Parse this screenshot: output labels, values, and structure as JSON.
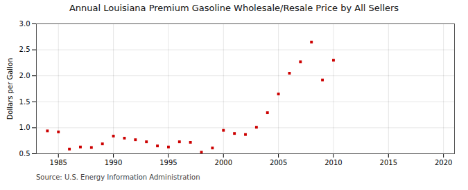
{
  "chart_data": {
    "type": "scatter",
    "title": "Annual Louisiana Premium Gasoline Wholesale/Resale Price by All Sellers",
    "ylabel": "Dollars per Gallon",
    "source": "Source: U.S. Energy Information Administration",
    "x": [
      1984,
      1985,
      1986,
      1987,
      1988,
      1989,
      1990,
      1991,
      1992,
      1993,
      1994,
      1995,
      1996,
      1997,
      1998,
      1999,
      2000,
      2001,
      2002,
      2003,
      2004,
      2005,
      2006,
      2007,
      2008,
      2009,
      2010
    ],
    "values": [
      0.94,
      0.92,
      0.59,
      0.63,
      0.62,
      0.69,
      0.84,
      0.8,
      0.77,
      0.73,
      0.65,
      0.63,
      0.73,
      0.72,
      0.53,
      0.61,
      0.95,
      0.89,
      0.87,
      1.01,
      1.29,
      1.65,
      2.05,
      2.27,
      2.65,
      1.92,
      2.3
    ],
    "color": "#cc0000",
    "marker": "square",
    "xlim": [
      1983,
      2021
    ],
    "ylim": [
      0.5,
      3.0
    ],
    "xticks": [
      1985,
      1990,
      1995,
      2000,
      2005,
      2010,
      2015,
      2020
    ],
    "yticks": [
      0.5,
      {
        "value": 1.0,
        "label": "1.0"
      },
      1.5,
      {
        "value": 2.0,
        "label": "2.0"
      },
      2.5,
      {
        "value": 3.0,
        "label": "3.0"
      }
    ],
    "grid": true
  }
}
